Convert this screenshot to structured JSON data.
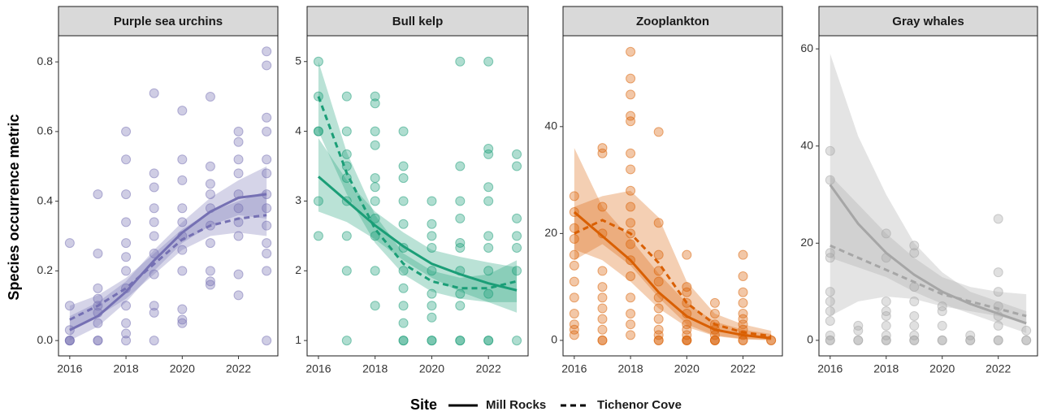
{
  "y_label": "Species occurrence metric",
  "legend": {
    "title": "Site",
    "entries": [
      {
        "name": "Mill Rocks",
        "dash": "solid"
      },
      {
        "name": "Tichenor Cove",
        "dash": "dashed"
      }
    ]
  },
  "chart_data": [
    {
      "type": "scatter",
      "title": "Purple sea urchins",
      "color": "#7570b3",
      "xlim": [
        2015.6,
        2023.4
      ],
      "xticks": [
        2016,
        2018,
        2020,
        2022
      ],
      "ylim": [
        -0.044,
        0.875
      ],
      "yticks": [
        {
          "value": 0,
          "label": "0.0"
        },
        0.2,
        0.4,
        0.6,
        0.8
      ],
      "points": {
        "x": [
          2016,
          2016,
          2016,
          2016,
          2016,
          2016,
          2017,
          2017,
          2017,
          2017,
          2017,
          2017,
          2017,
          2017,
          2017,
          2018,
          2018,
          2018,
          2018,
          2018,
          2018,
          2018,
          2018,
          2018,
          2018,
          2018,
          2018,
          2019,
          2019,
          2019,
          2019,
          2019,
          2019,
          2019,
          2019,
          2019,
          2019,
          2019,
          2020,
          2020,
          2020,
          2020,
          2020,
          2020,
          2020,
          2020,
          2020,
          2020,
          2020,
          2021,
          2021,
          2021,
          2021,
          2021,
          2021,
          2021,
          2021,
          2021,
          2021,
          2022,
          2022,
          2022,
          2022,
          2022,
          2022,
          2022,
          2022,
          2022,
          2022,
          2023,
          2023,
          2023,
          2023,
          2023,
          2023,
          2023,
          2023,
          2023,
          2023,
          2023,
          2023,
          2023
        ],
        "values": [
          0.28,
          0.1,
          0.03,
          0,
          0,
          0,
          0.42,
          0.25,
          0.15,
          0.12,
          0.1,
          0.08,
          0.05,
          0,
          0,
          0.6,
          0.52,
          0.42,
          0.34,
          0.28,
          0.24,
          0.2,
          0.15,
          0.1,
          0.05,
          0.02,
          0,
          0.71,
          0.48,
          0.44,
          0.38,
          0.34,
          0.3,
          0.25,
          0.19,
          0.1,
          0.08,
          0,
          0.66,
          0.52,
          0.46,
          0.38,
          0.34,
          0.3,
          0.26,
          0.2,
          0.09,
          0.06,
          0.05,
          0.7,
          0.5,
          0.45,
          0.42,
          0.38,
          0.33,
          0.28,
          0.2,
          0.17,
          0.16,
          0.6,
          0.57,
          0.52,
          0.48,
          0.42,
          0.38,
          0.34,
          0.3,
          0.19,
          0.13,
          0.83,
          0.79,
          0.64,
          0.6,
          0.52,
          0.48,
          0.42,
          0.38,
          0.33,
          0.28,
          0.25,
          0.2,
          0
        ]
      },
      "fit_x": [
        2016,
        2017,
        2018,
        2019,
        2020,
        2021,
        2022,
        2023
      ],
      "fits": [
        {
          "values": [
            0.03,
            0.07,
            0.14,
            0.23,
            0.31,
            0.37,
            0.41,
            0.42
          ],
          "lower": [
            0,
            0.04,
            0.11,
            0.2,
            0.28,
            0.33,
            0.36,
            0.35
          ],
          "upper": [
            0.07,
            0.11,
            0.17,
            0.26,
            0.34,
            0.41,
            0.46,
            0.5
          ]
        },
        {
          "values": [
            0.06,
            0.1,
            0.15,
            0.22,
            0.29,
            0.33,
            0.35,
            0.36
          ],
          "lower": [
            0.03,
            0.07,
            0.12,
            0.19,
            0.26,
            0.3,
            0.31,
            0.3
          ],
          "upper": [
            0.1,
            0.13,
            0.18,
            0.25,
            0.32,
            0.37,
            0.4,
            0.43
          ]
        }
      ]
    },
    {
      "type": "scatter",
      "title": "Bull kelp",
      "color": "#1b9e77",
      "xlim": [
        2015.6,
        2023.4
      ],
      "xticks": [
        2016,
        2018,
        2020,
        2022
      ],
      "ylim": [
        0.78,
        5.37
      ],
      "yticks": [
        1,
        2,
        3,
        4,
        5
      ],
      "points": {
        "x": [
          2016,
          2016,
          2016,
          2016,
          2016,
          2016,
          2017,
          2017,
          2017,
          2017,
          2017,
          2017,
          2017,
          2017,
          2017,
          2018,
          2018,
          2018,
          2018,
          2018,
          2018,
          2018,
          2018,
          2018,
          2018,
          2018,
          2019,
          2019,
          2019,
          2019,
          2019,
          2019,
          2019,
          2019,
          2019,
          2019,
          2019,
          2019,
          2020,
          2020,
          2020,
          2020,
          2020,
          2020,
          2020,
          2020,
          2020,
          2020,
          2021,
          2021,
          2021,
          2021,
          2021,
          2021,
          2021,
          2021,
          2021,
          2021,
          2021,
          2022,
          2022,
          2022,
          2022,
          2022,
          2022,
          2022,
          2022,
          2022,
          2022,
          2022,
          2023,
          2023,
          2023,
          2023,
          2023,
          2023,
          2023
        ],
        "values": [
          5,
          4.5,
          4,
          4,
          3,
          2.5,
          4.5,
          4,
          3.67,
          3.5,
          3.33,
          3,
          2.5,
          2,
          1,
          4.5,
          4.4,
          4,
          3.8,
          3.33,
          3.2,
          3,
          2.75,
          2.5,
          2,
          1.5,
          4,
          3.5,
          3.33,
          3,
          2.67,
          2.33,
          2,
          1.75,
          1.5,
          1.25,
          1,
          1,
          3,
          2.67,
          2.5,
          2.33,
          2,
          1.67,
          1.5,
          1.33,
          1,
          1,
          5,
          3.5,
          3,
          2.75,
          2.4,
          2.33,
          2,
          1.67,
          1.5,
          1,
          1,
          5,
          3.75,
          3.67,
          3.2,
          3,
          2.5,
          2.33,
          2,
          1.67,
          1,
          1,
          3.67,
          3.5,
          2.75,
          2.5,
          2.33,
          2,
          1
        ]
      },
      "fit_x": [
        2016,
        2017,
        2018,
        2019,
        2020,
        2021,
        2022,
        2023
      ],
      "fits": [
        {
          "values": [
            3.35,
            3.0,
            2.65,
            2.35,
            2.1,
            1.95,
            1.82,
            1.72
          ],
          "lower": [
            2.85,
            2.7,
            2.45,
            2.15,
            1.9,
            1.7,
            1.55,
            1.4
          ],
          "upper": [
            3.9,
            3.3,
            2.85,
            2.55,
            2.3,
            2.2,
            2.12,
            2.05
          ]
        },
        {
          "values": [
            4.5,
            3.4,
            2.6,
            2.1,
            1.85,
            1.75,
            1.75,
            1.85
          ],
          "lower": [
            4.0,
            3.1,
            2.4,
            1.95,
            1.7,
            1.6,
            1.55,
            1.55
          ],
          "upper": [
            5.0,
            3.7,
            2.8,
            2.25,
            2.0,
            1.9,
            1.95,
            2.15
          ]
        }
      ]
    },
    {
      "type": "scatter",
      "title": "Zooplankton",
      "color": "#d95f02",
      "xlim": [
        2015.6,
        2023.4
      ],
      "xticks": [
        2016,
        2018,
        2020,
        2022
      ],
      "ylim": [
        -2.9,
        57
      ],
      "yticks": [
        0,
        20,
        40
      ],
      "points": {
        "x": [
          2016,
          2016,
          2016,
          2016,
          2016,
          2016,
          2016,
          2016,
          2016,
          2016,
          2016,
          2016,
          2017,
          2017,
          2017,
          2017,
          2017,
          2017,
          2017,
          2017,
          2017,
          2017,
          2017,
          2017,
          2018,
          2018,
          2018,
          2018,
          2018,
          2018,
          2018,
          2018,
          2018,
          2018,
          2018,
          2018,
          2018,
          2018,
          2018,
          2018,
          2018,
          2018,
          2019,
          2019,
          2019,
          2019,
          2019,
          2019,
          2019,
          2019,
          2019,
          2019,
          2019,
          2019,
          2020,
          2020,
          2020,
          2020,
          2020,
          2020,
          2020,
          2020,
          2020,
          2020,
          2020,
          2021,
          2021,
          2021,
          2021,
          2021,
          2021,
          2021,
          2021,
          2022,
          2022,
          2022,
          2022,
          2022,
          2022,
          2022,
          2022,
          2022,
          2022,
          2022,
          2023,
          2023
        ],
        "values": [
          27,
          24,
          21,
          19,
          16,
          14,
          11,
          8,
          5,
          3,
          2,
          1,
          36,
          35,
          25,
          20,
          13,
          10,
          8,
          6,
          4,
          2,
          0,
          0,
          54,
          49,
          46,
          42,
          41,
          35,
          32,
          28,
          25,
          22,
          20,
          18,
          15,
          12,
          8,
          5,
          3,
          1,
          39,
          22,
          16,
          13,
          11,
          8,
          6,
          4,
          2,
          1,
          0,
          0,
          16,
          10,
          9,
          7,
          5,
          3,
          2,
          1,
          0,
          0,
          0,
          7,
          5,
          3,
          2,
          1,
          0,
          0,
          0,
          16,
          12,
          9,
          7,
          5,
          4,
          3,
          2,
          1,
          0,
          0,
          0,
          0
        ]
      },
      "fit_x": [
        2016,
        2017,
        2018,
        2019,
        2020,
        2021,
        2022,
        2023
      ],
      "fits": [
        {
          "values": [
            24,
            19.5,
            15,
            9,
            4.5,
            2,
            1,
            0.4
          ],
          "lower": [
            17,
            15,
            11,
            6,
            2.5,
            0.8,
            0.2,
            0
          ],
          "upper": [
            36,
            25,
            19,
            12.5,
            7,
            3.5,
            2,
            1.2
          ]
        },
        {
          "values": [
            20,
            22.5,
            20,
            14.5,
            7,
            3,
            1.5,
            0.8
          ],
          "lower": [
            15,
            18,
            14,
            8,
            3,
            0.9,
            0.3,
            0.1
          ],
          "upper": [
            25,
            27,
            28,
            23,
            11,
            5,
            3,
            1.8
          ]
        }
      ]
    },
    {
      "type": "scatter",
      "title": "Gray whales",
      "color": "#a6a6a6",
      "xlim": [
        2015.6,
        2023.4
      ],
      "xticks": [
        2016,
        2018,
        2020,
        2022
      ],
      "ylim": [
        -3.2,
        62.7
      ],
      "yticks": [
        0,
        20,
        40,
        60
      ],
      "points": {
        "x": [
          2016,
          2016,
          2016,
          2016,
          2016,
          2016,
          2016,
          2016,
          2016,
          2016,
          2016,
          2017,
          2017,
          2017,
          2017,
          2018,
          2018,
          2018,
          2018,
          2018,
          2018,
          2018,
          2018,
          2018,
          2019,
          2019,
          2019,
          2019,
          2019,
          2019,
          2019,
          2019,
          2019,
          2020,
          2020,
          2020,
          2020,
          2020,
          2021,
          2021,
          2021,
          2022,
          2022,
          2022,
          2022,
          2022,
          2022,
          2022,
          2022,
          2023,
          2023,
          2023
        ],
        "values": [
          39,
          33,
          18,
          17,
          10,
          8,
          6,
          4,
          1,
          0,
          0,
          3,
          2,
          0,
          0,
          22,
          17,
          8,
          6,
          5,
          3,
          1,
          0,
          0,
          19.5,
          18,
          11,
          8,
          5,
          3,
          1,
          0,
          0,
          7,
          6,
          3,
          0,
          0,
          1,
          0,
          0,
          25,
          14,
          10,
          7,
          5,
          3,
          0,
          0,
          2,
          0,
          0
        ]
      },
      "fit_x": [
        2016,
        2017,
        2018,
        2019,
        2020,
        2021,
        2022,
        2023
      ],
      "fits": [
        {
          "values": [
            32,
            24,
            18,
            13.5,
            10,
            7.5,
            5.5,
            3.5
          ],
          "lower": [
            17,
            15,
            13,
            10,
            7.5,
            5.5,
            3.5,
            1.5
          ],
          "upper": [
            59,
            42,
            30,
            20,
            14,
            10,
            8,
            6
          ]
        },
        {
          "values": [
            19.5,
            17,
            14.5,
            12,
            9.5,
            8,
            6.5,
            5
          ],
          "lower": [
            5,
            8,
            9,
            8.5,
            7,
            6,
            5,
            3.5
          ],
          "upper": [
            34,
            28,
            22,
            17,
            13,
            11,
            10,
            9.5
          ]
        }
      ]
    }
  ]
}
